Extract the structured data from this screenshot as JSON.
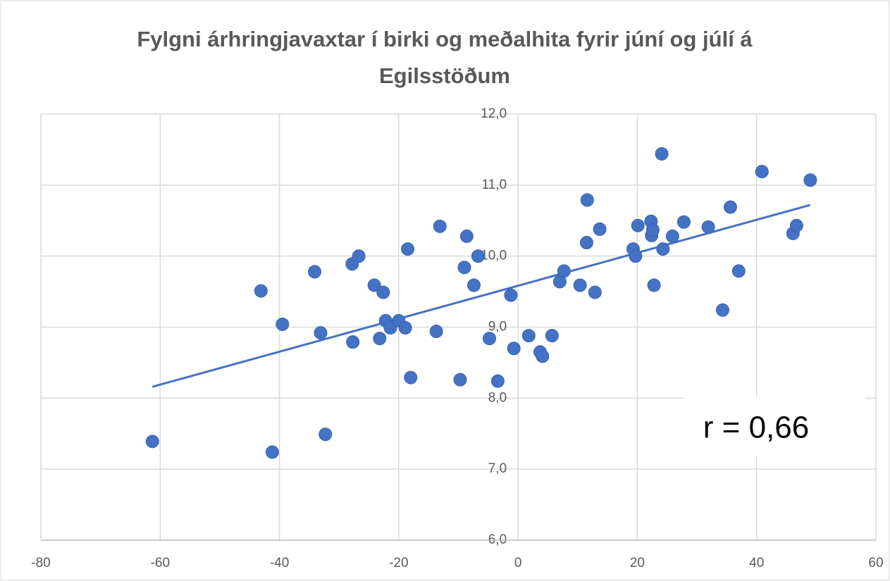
{
  "chart_data": {
    "type": "scatter",
    "title": "Fylgni árhringjavaxtar í birki og meðalhita fyrir júní og júlí á Egilsstöðum",
    "annotation": "r = 0,66",
    "color": "#4472c4",
    "x": [
      -61.3,
      -41.2,
      -32.3,
      -43.1,
      -39.5,
      -34.1,
      -33.1,
      -27.8,
      -26.7,
      -27.7,
      -24.1,
      -22.6,
      -23.2,
      -22.2,
      -21.4,
      -20.0,
      -18.9,
      -18.5,
      -18.0,
      -13.7,
      -13.1,
      -9.7,
      -9.0,
      -8.6,
      -7.4,
      -6.7,
      -4.8,
      -3.4,
      -1.2,
      -0.7,
      1.8,
      3.7,
      4.1,
      5.7,
      7.0,
      7.7,
      10.4,
      11.6,
      11.5,
      12.9,
      13.7,
      19.3,
      19.7,
      20.1,
      22.3,
      22.4,
      22.6,
      22.8,
      24.1,
      24.3,
      25.9,
      27.8,
      31.9,
      34.3,
      35.6,
      37.0,
      40.9,
      46.1,
      46.7,
      49.0
    ],
    "y": [
      7.39,
      7.24,
      7.49,
      9.51,
      9.04,
      9.78,
      8.92,
      9.89,
      10.0,
      8.79,
      9.59,
      9.49,
      8.84,
      9.09,
      8.99,
      9.09,
      8.99,
      10.1,
      8.29,
      8.94,
      10.42,
      8.26,
      9.84,
      10.28,
      9.59,
      10.0,
      8.84,
      8.24,
      9.45,
      8.7,
      8.88,
      8.65,
      8.59,
      8.88,
      9.64,
      9.79,
      9.59,
      10.79,
      10.19,
      9.49,
      10.38,
      10.1,
      10.0,
      10.43,
      10.49,
      10.29,
      10.37,
      9.59,
      11.44,
      10.1,
      10.28,
      10.48,
      10.41,
      9.24,
      10.69,
      9.79,
      11.19,
      10.32,
      10.43,
      11.07
    ],
    "trendline": {
      "x": [
        -61.3,
        49.0
      ],
      "y": [
        8.16,
        10.72
      ]
    },
    "xlim": [
      -80,
      60
    ],
    "xticks": [
      -80,
      -60,
      -40,
      -20,
      0,
      20,
      40,
      60
    ],
    "ylim": [
      6,
      12
    ],
    "yticks": [
      {
        "value": 6,
        "label": "6,0"
      },
      {
        "value": 7,
        "label": "7,0"
      },
      {
        "value": 8,
        "label": "8,0"
      },
      {
        "value": 9,
        "label": "9,0"
      },
      {
        "value": 10,
        "label": "10,0"
      },
      {
        "value": 11,
        "label": "11,0"
      },
      {
        "value": 12,
        "label": "12,0"
      }
    ],
    "grid": true
  }
}
